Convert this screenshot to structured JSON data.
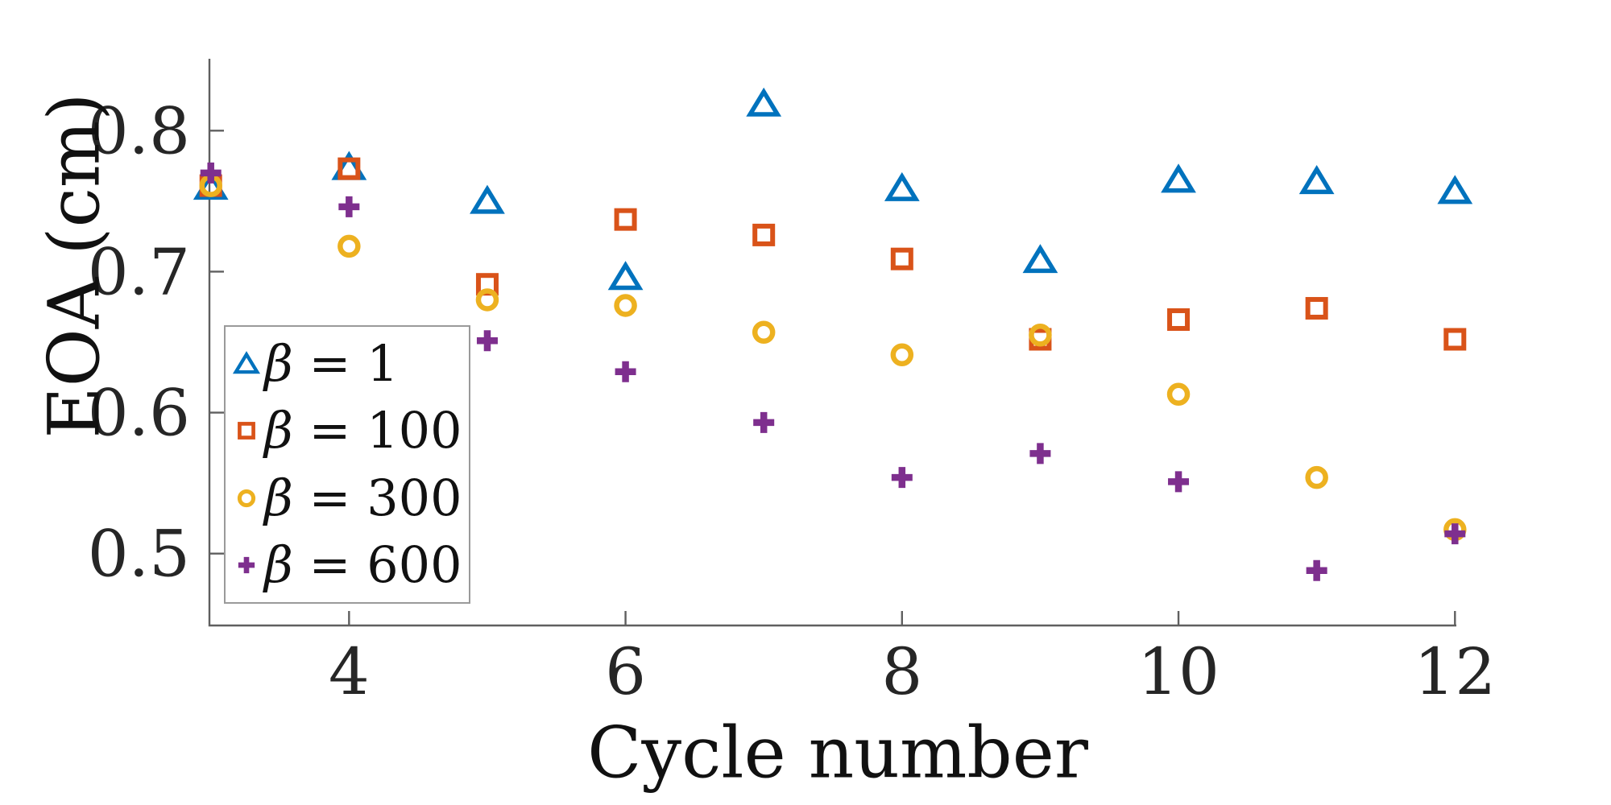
{
  "figure": {
    "ylabel": "EOA (cm)",
    "xlabel": "Cycle number",
    "background": "#ffffff",
    "axis_color": "#5f5f5f",
    "tick_label_color": "#262626"
  },
  "chart_data": {
    "type": "scatter",
    "title": "",
    "xlabel": "Cycle number",
    "ylabel": "EOA (cm)",
    "x": [
      3,
      4,
      5,
      6,
      7,
      8,
      9,
      10,
      11,
      12
    ],
    "series": [
      {
        "name": "β = 1",
        "marker": "triangle",
        "color": "#0072BD",
        "values": [
          0.76,
          0.774,
          0.75,
          0.696,
          0.819,
          0.759,
          0.708,
          0.765,
          0.764,
          0.757
        ]
      },
      {
        "name": "β = 100",
        "marker": "square",
        "color": "#D95319",
        "values": [
          0.761,
          0.773,
          0.691,
          0.737,
          0.726,
          0.709,
          0.652,
          0.666,
          0.674,
          0.652
        ]
      },
      {
        "name": "β = 300",
        "marker": "circle",
        "color": "#EDB120",
        "values": [
          0.761,
          0.718,
          0.68,
          0.676,
          0.657,
          0.641,
          0.655,
          0.613,
          0.554,
          0.517
        ]
      },
      {
        "name": "β = 600",
        "marker": "plus",
        "color": "#7E2F8E",
        "values": [
          0.77,
          0.746,
          0.651,
          0.629,
          0.593,
          0.554,
          0.571,
          0.551,
          0.488,
          0.514
        ]
      }
    ],
    "xlim": [
      2.99,
      12.01
    ],
    "ylim": [
      0.449,
      0.851
    ],
    "xticks": [
      4,
      6,
      8,
      10,
      12
    ],
    "yticks": [
      0.5,
      0.6,
      0.7,
      0.8
    ],
    "grid": false,
    "legend_position": "inside-left",
    "axes_box": false
  }
}
